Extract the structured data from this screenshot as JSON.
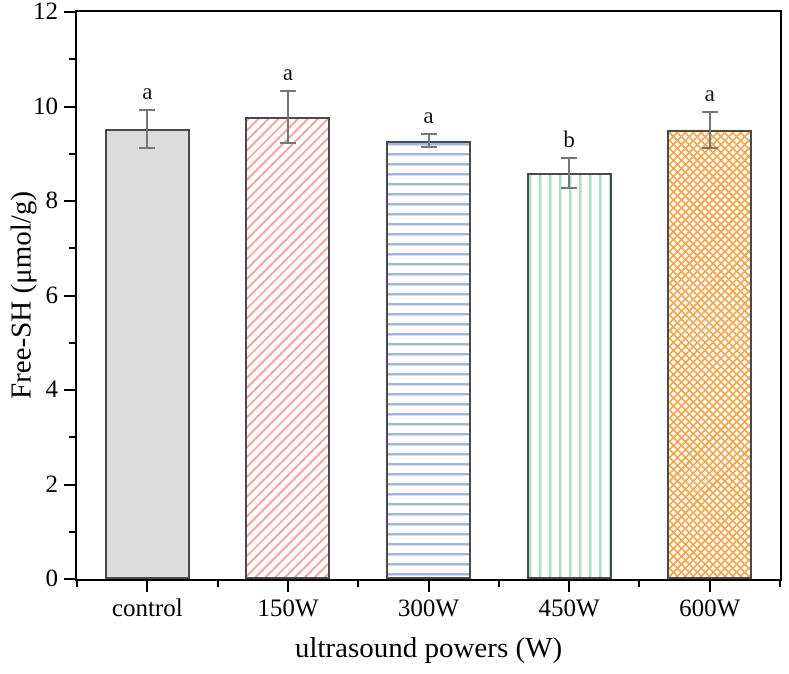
{
  "chart_data": {
    "type": "bar",
    "title": "",
    "xlabel": "ultrasound powers (W)",
    "ylabel": "Free-SH (μmol/g)",
    "categories": [
      "control",
      "150W",
      "300W",
      "450W",
      "600W"
    ],
    "values": [
      9.52,
      9.78,
      9.28,
      8.6,
      9.5
    ],
    "errors": [
      0.4,
      0.55,
      0.13,
      0.32,
      0.38
    ],
    "sig_letters": [
      "a",
      "a",
      "a",
      "b",
      "a"
    ],
    "ylim": [
      0,
      12
    ],
    "y_major_ticks": [
      0,
      2,
      4,
      6,
      8,
      10,
      12
    ],
    "y_minor_ticks": [
      1,
      3,
      5,
      7,
      9,
      11
    ],
    "grid": false,
    "legend": "none",
    "bar_styles": [
      {
        "pattern": "solid",
        "color": "#dcdcdc"
      },
      {
        "pattern": "diagonal-up",
        "color": "#f4a6a4"
      },
      {
        "pattern": "horizontal",
        "color": "#a0b7d8"
      },
      {
        "pattern": "vertical",
        "color": "#a8e2c3"
      },
      {
        "pattern": "crosshatch",
        "color": "#f6a84e"
      }
    ],
    "bar_border_color": "#4a4a4a",
    "error_bar_color": "#767676",
    "axis_color": "#000000"
  }
}
